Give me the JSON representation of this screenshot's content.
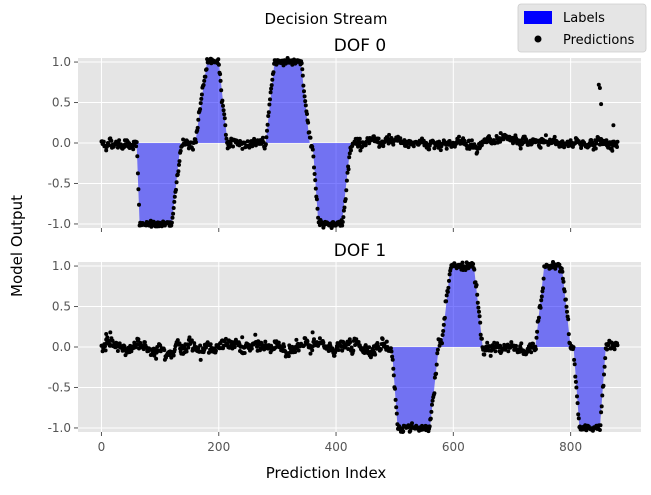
{
  "figure": {
    "suptitle": "Decision Stream",
    "xlabel": "Prediction Index",
    "ylabel": "Model Output",
    "legend": [
      {
        "label": "Labels",
        "kind": "patch",
        "color": "#0000ff"
      },
      {
        "label": "Predictions",
        "kind": "marker",
        "color": "#000000"
      }
    ],
    "legend_position": "top-right"
  },
  "chart_data": [
    {
      "type": "area",
      "title": "DOF 0",
      "xlim": [
        -40,
        920
      ],
      "ylim": [
        -1.05,
        1.05
      ],
      "xticks": [
        0,
        200,
        400,
        600,
        800
      ],
      "xtick_labels_visible": false,
      "yticks": [
        -1.0,
        -0.5,
        0.0,
        0.5,
        1.0
      ],
      "ytick_labels": [
        "-1.0",
        "-0.5",
        "0.0",
        "0.5",
        "1.0"
      ],
      "grid": true,
      "labels": {
        "name": "Labels",
        "color": "#0000ff",
        "points": [
          [
            0,
            0
          ],
          [
            60,
            0
          ],
          [
            65,
            -1
          ],
          [
            120,
            -1
          ],
          [
            135,
            0
          ],
          [
            160,
            0
          ],
          [
            180,
            1
          ],
          [
            200,
            1
          ],
          [
            215,
            0
          ],
          [
            280,
            0
          ],
          [
            295,
            1
          ],
          [
            340,
            1
          ],
          [
            355,
            0
          ],
          [
            360,
            0
          ],
          [
            370,
            -1
          ],
          [
            410,
            -1
          ],
          [
            425,
            0
          ],
          [
            880,
            0
          ]
        ]
      },
      "predictions": {
        "name": "Predictions",
        "color": "#000000",
        "x_range": [
          0,
          880
        ],
        "count": 880,
        "noise": 0.04,
        "outliers": [
          {
            "x": 848,
            "y": 0.72
          },
          {
            "x": 850,
            "y": 0.68
          },
          {
            "x": 852,
            "y": 0.48
          },
          {
            "x": 873,
            "y": 0.22
          }
        ]
      }
    },
    {
      "type": "area",
      "title": "DOF 1",
      "xlim": [
        -40,
        920
      ],
      "ylim": [
        -1.05,
        1.05
      ],
      "xticks": [
        0,
        200,
        400,
        600,
        800
      ],
      "xtick_labels": [
        "0",
        "200",
        "400",
        "600",
        "800"
      ],
      "yticks": [
        -1.0,
        -0.5,
        0.0,
        0.5,
        1.0
      ],
      "ytick_labels": [
        "-1.0",
        "-0.5",
        "0.0",
        "0.5",
        "1.0"
      ],
      "grid": true,
      "labels": {
        "name": "Labels",
        "color": "#0000ff",
        "points": [
          [
            0,
            0
          ],
          [
            495,
            0
          ],
          [
            505,
            -1
          ],
          [
            560,
            -1
          ],
          [
            575,
            0
          ],
          [
            580,
            0
          ],
          [
            595,
            1
          ],
          [
            635,
            1
          ],
          [
            650,
            0
          ],
          [
            700,
            0
          ],
          [
            710,
            0
          ],
          [
            720,
            0
          ],
          [
            740,
            0
          ],
          [
            755,
            1
          ],
          [
            785,
            1
          ],
          [
            800,
            0
          ],
          [
            805,
            0
          ],
          [
            815,
            -1
          ],
          [
            850,
            -1
          ],
          [
            860,
            0
          ],
          [
            880,
            0
          ]
        ]
      },
      "predictions": {
        "name": "Predictions",
        "color": "#000000",
        "x_range": [
          0,
          880
        ],
        "count": 880,
        "noise": 0.05,
        "outliers": [
          {
            "x": 8,
            "y": 0.16
          },
          {
            "x": 15,
            "y": 0.18
          },
          {
            "x": 240,
            "y": 0.12
          },
          {
            "x": 360,
            "y": 0.18
          }
        ]
      }
    }
  ]
}
